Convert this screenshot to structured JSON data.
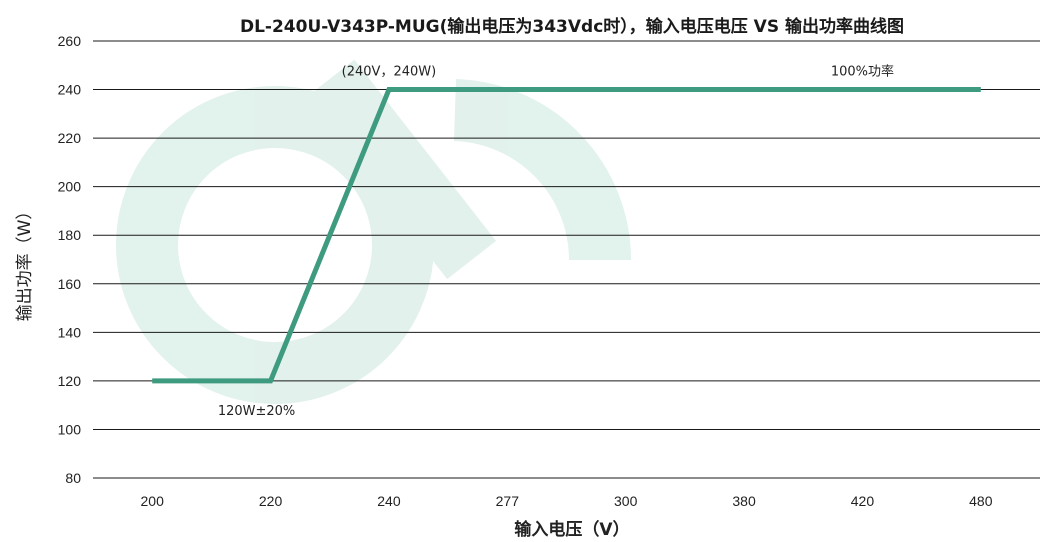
{
  "chart_data": {
    "type": "line",
    "title": "DL-240U-V343P-MUG(输出电压为343Vdc时），输入电压电压 VS 输出功率曲线图",
    "xlabel": "输入电压（V）",
    "ylabel": "输出功率（W）",
    "categories": [
      "200",
      "220",
      "240",
      "277",
      "300",
      "380",
      "420",
      "480"
    ],
    "series": [
      {
        "values": [
          120,
          120,
          240,
          240,
          240,
          240,
          240,
          240
        ]
      }
    ],
    "ylim": [
      80,
      260
    ],
    "yticks": [
      80,
      100,
      120,
      140,
      160,
      180,
      200,
      220,
      240,
      260
    ],
    "grid": true,
    "annotations": [
      {
        "text": "(240V，240W)",
        "x": "240",
        "y": 240
      },
      {
        "text": "100%功率",
        "x": "420",
        "y": 240
      },
      {
        "text": "120W±20%",
        "x": "220",
        "y": 120
      }
    ],
    "colors": {
      "series": "#3f9b7f",
      "watermark": "#d6ede6",
      "grid": "#1a1a1a"
    }
  }
}
